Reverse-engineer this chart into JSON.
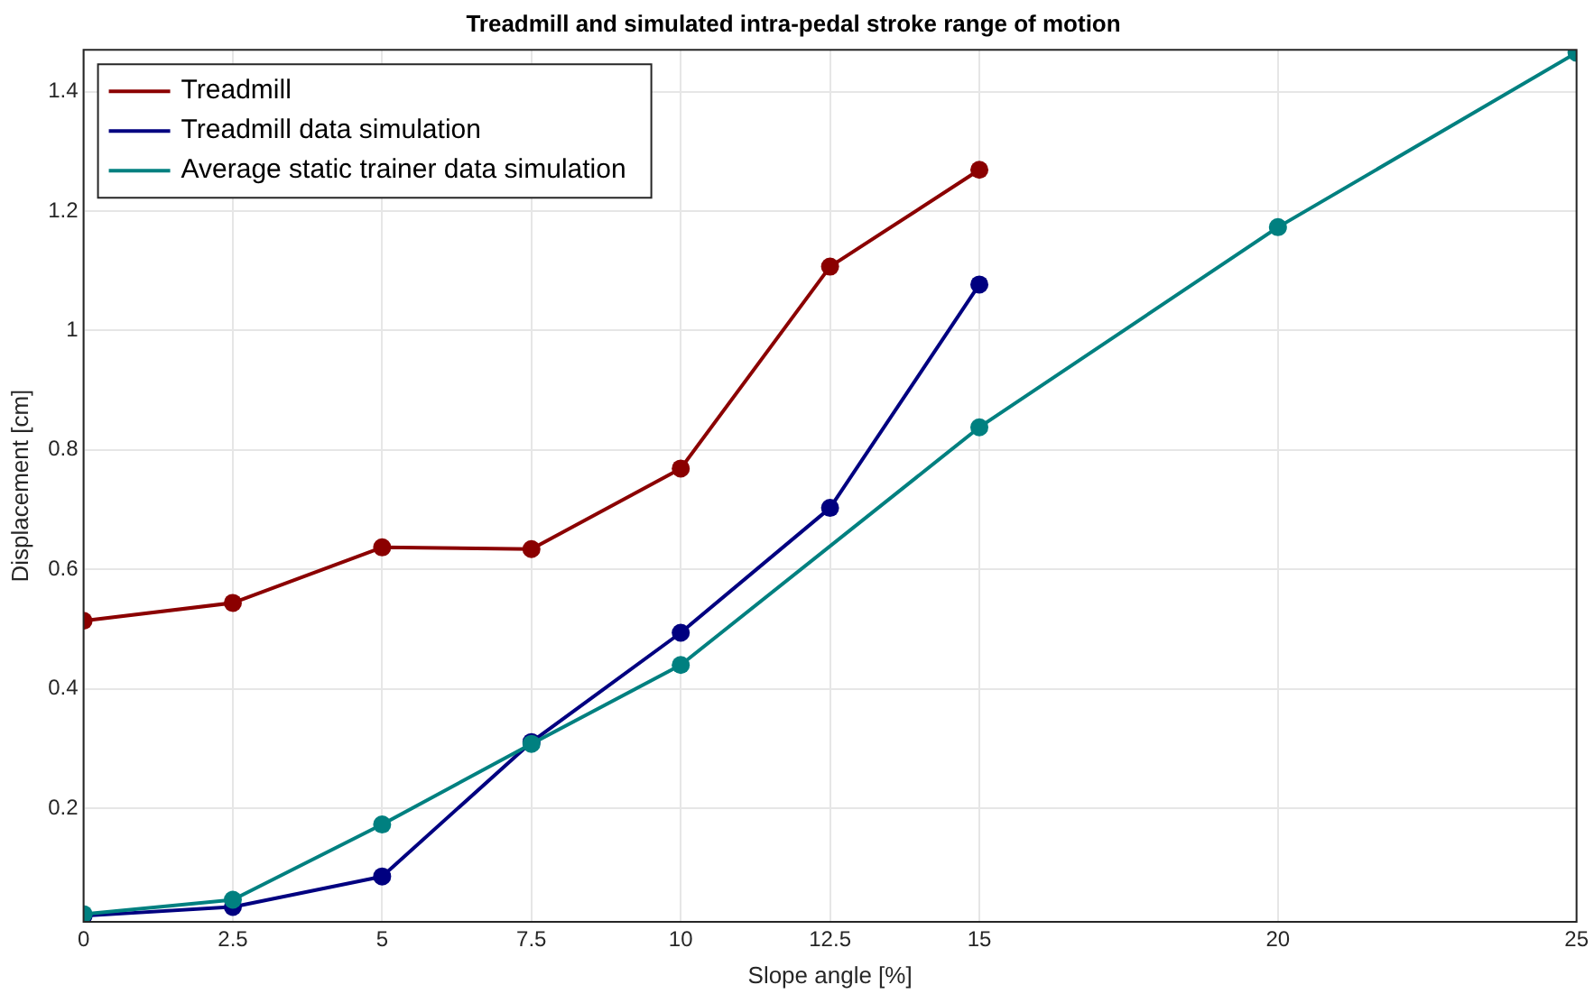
{
  "chart_data": {
    "type": "line",
    "title": "Treadmill and simulated intra-pedal stroke range of motion",
    "xlabel": "Slope angle [%]",
    "ylabel": "Displacement [cm]",
    "xlim": [
      0,
      25
    ],
    "xticks": [
      0,
      2.5,
      5,
      7.5,
      10,
      12.5,
      15,
      20,
      25
    ],
    "ylim": [
      0.01,
      1.47
    ],
    "yticks": [
      0.2,
      0.4,
      0.6,
      0.8,
      1,
      1.2,
      1.4
    ],
    "grid": true,
    "legend": "top left",
    "marker": "circle",
    "line_style": "solid",
    "series": [
      {
        "name": "Treadmill",
        "color": "#8b0000",
        "x": [
          0,
          2.5,
          5,
          7.5,
          10,
          12.5,
          15
        ],
        "values": [
          0.514,
          0.544,
          0.637,
          0.634,
          0.769,
          1.107,
          1.269
        ]
      },
      {
        "name": "Treadmill data simulation",
        "color": "#000080",
        "x": [
          0,
          2.5,
          5,
          7.5,
          10,
          12.5,
          15
        ],
        "values": [
          0.02,
          0.035,
          0.086,
          0.311,
          0.494,
          0.703,
          1.077
        ]
      },
      {
        "name": "Average static trainer data simulation",
        "color": "#008080",
        "x": [
          0,
          2.5,
          5,
          7.5,
          10,
          15,
          20,
          25
        ],
        "values": [
          0.023,
          0.047,
          0.173,
          0.308,
          0.44,
          0.838,
          1.173,
          1.465
        ]
      }
    ]
  }
}
